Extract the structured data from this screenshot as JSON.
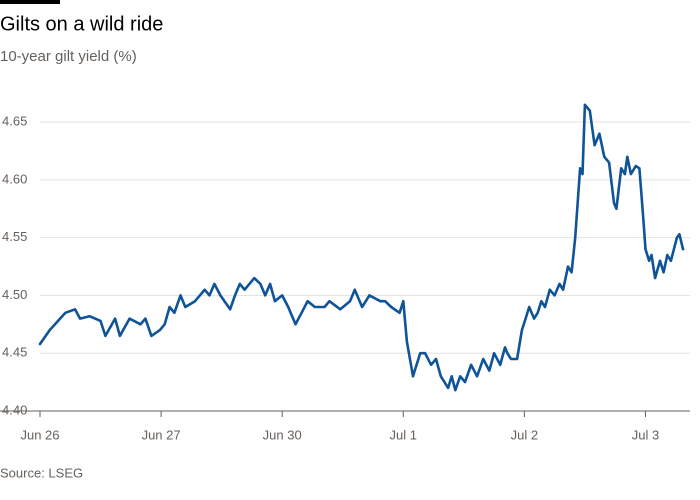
{
  "chart_data": {
    "type": "line",
    "title": "Gilts on a wild ride",
    "subtitle": "10-year gilt yield (%)",
    "source": "Source: LSEG",
    "grid": true,
    "xlim": [
      0,
      5.31
    ],
    "xticks": [
      {
        "value": 0,
        "label": "Jun 26"
      },
      {
        "value": 1,
        "label": "Jun 27"
      },
      {
        "value": 2,
        "label": "Jun 30"
      },
      {
        "value": 3,
        "label": "Jul 1"
      },
      {
        "value": 4,
        "label": "Jul 2"
      },
      {
        "value": 5,
        "label": "Jul 3"
      }
    ],
    "ylim": [
      4.4,
      4.67
    ],
    "yticks": [
      {
        "value": 4.4,
        "label": "4.40"
      },
      4.45,
      {
        "value": 4.5,
        "label": "4.50"
      },
      4.55,
      {
        "value": 4.6,
        "label": "4.60"
      },
      4.65
    ],
    "series": [
      {
        "name": "10-year gilt yield",
        "color": "#0f5499",
        "x": [
          0,
          0.08,
          0.21,
          0.29,
          0.33,
          0.41,
          0.5,
          0.54,
          0.62,
          0.66,
          0.74,
          0.83,
          0.87,
          0.92,
          0.99,
          1.03,
          1.07,
          1.11,
          1.16,
          1.2,
          1.28,
          1.36,
          1.4,
          1.44,
          1.49,
          1.57,
          1.61,
          1.65,
          1.69,
          1.77,
          1.82,
          1.86,
          1.9,
          1.94,
          2.0,
          2.05,
          2.11,
          2.16,
          2.21,
          2.27,
          2.35,
          2.39,
          2.48,
          2.56,
          2.6,
          2.66,
          2.72,
          2.81,
          2.85,
          2.9,
          2.97,
          3.0,
          3.03,
          3.08,
          3.14,
          3.18,
          3.23,
          3.27,
          3.31,
          3.37,
          3.4,
          3.43,
          3.47,
          3.51,
          3.56,
          3.61,
          3.66,
          3.71,
          3.75,
          3.8,
          3.84,
          3.86,
          3.89,
          3.94,
          3.98,
          4.01,
          4.04,
          4.08,
          4.11,
          4.14,
          4.17,
          4.21,
          4.25,
          4.29,
          4.32,
          4.36,
          4.39,
          4.42,
          4.46,
          4.48,
          4.5,
          4.54,
          4.58,
          4.62,
          4.66,
          4.7,
          4.74,
          4.76,
          4.8,
          4.83,
          4.85,
          4.88,
          4.92,
          4.95,
          4.98,
          5.0,
          5.03,
          5.05,
          5.08,
          5.12,
          5.15,
          5.18,
          5.21,
          5.26,
          5.28,
          5.31
        ],
        "values": [
          4.458,
          4.47,
          4.485,
          4.488,
          4.48,
          4.482,
          4.478,
          4.465,
          4.48,
          4.465,
          4.48,
          4.475,
          4.48,
          4.465,
          4.47,
          4.475,
          4.49,
          4.485,
          4.5,
          4.49,
          4.495,
          4.505,
          4.5,
          4.51,
          4.5,
          4.488,
          4.5,
          4.51,
          4.505,
          4.515,
          4.51,
          4.5,
          4.51,
          4.495,
          4.5,
          4.49,
          4.475,
          4.485,
          4.495,
          4.49,
          4.49,
          4.495,
          4.488,
          4.495,
          4.505,
          4.49,
          4.5,
          4.495,
          4.495,
          4.49,
          4.485,
          4.495,
          4.46,
          4.43,
          4.45,
          4.45,
          4.44,
          4.445,
          4.43,
          4.42,
          4.43,
          4.418,
          4.43,
          4.425,
          4.44,
          4.43,
          4.445,
          4.435,
          4.45,
          4.44,
          4.455,
          4.45,
          4.445,
          4.445,
          4.47,
          4.48,
          4.49,
          4.48,
          4.485,
          4.495,
          4.49,
          4.505,
          4.5,
          4.51,
          4.505,
          4.525,
          4.52,
          4.55,
          4.61,
          4.605,
          4.665,
          4.66,
          4.63,
          4.64,
          4.62,
          4.615,
          4.58,
          4.575,
          4.61,
          4.605,
          4.62,
          4.605,
          4.612,
          4.61,
          4.57,
          4.54,
          4.53,
          4.535,
          4.515,
          4.53,
          4.52,
          4.535,
          4.53,
          4.55,
          4.553,
          4.54
        ]
      }
    ]
  }
}
